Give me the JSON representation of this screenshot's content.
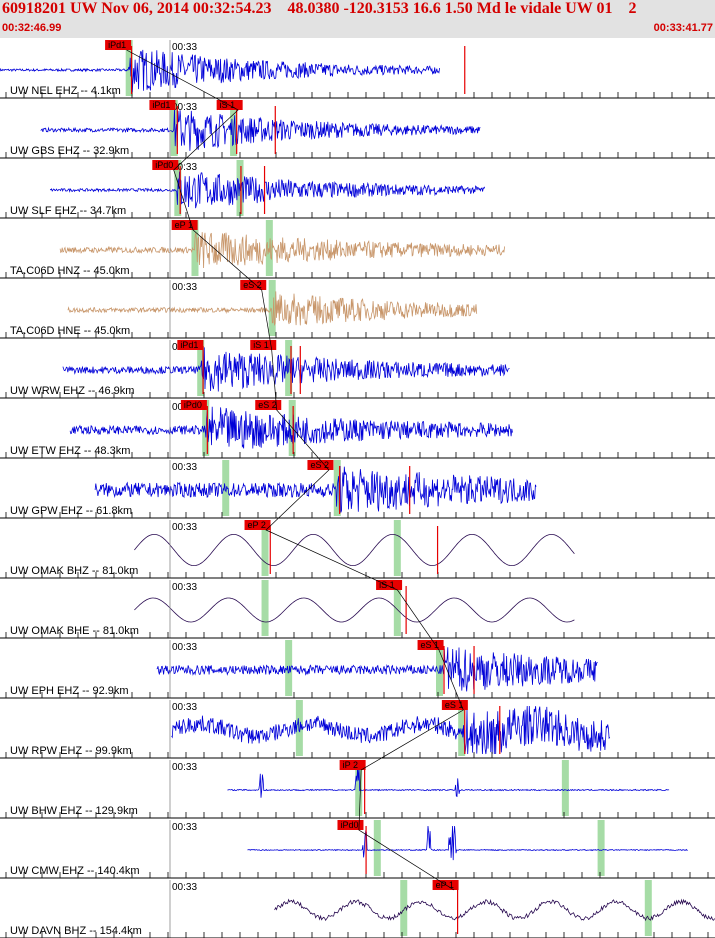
{
  "header": {
    "title": "60918201 UW Nov 06, 2014 00:32:54.23    48.0380 -120.3153 16.6 1.50 Md le vidale UW 01    2",
    "start_time": "00:32:46.99",
    "end_time": "00:33:41.77"
  },
  "minute_label": "00:33",
  "colors": {
    "blue": "#0000d8",
    "tan": "#c8966a",
    "dark": "#2a0c52",
    "pick": "#e60000",
    "green": "#a6dca6",
    "header_bg": "#e2e2e2"
  },
  "traces": [
    {
      "label": "UW NEL EHZ -- 4.1km",
      "color": "blue",
      "style": "quake",
      "start": 0.0,
      "end": 0.615,
      "onset": 0.18,
      "amp": 0.95,
      "decay": 0.2,
      "base": 0.05,
      "green": [
        0.18
      ],
      "picks": [
        {
          "text": "iPd1",
          "x": 0.147
        }
      ],
      "marks": [
        0.184,
        0.65
      ]
    },
    {
      "label": "UW GBS EHZ -- 32.9km",
      "color": "blue",
      "style": "quake",
      "start": 0.057,
      "end": 0.672,
      "onset": 0.243,
      "amp": 0.9,
      "decay": 0.18,
      "base": 0.08,
      "green": [
        0.243,
        0.326
      ],
      "picks": [
        {
          "text": "iPd1",
          "x": 0.209
        },
        {
          "text": "iS 1",
          "x": 0.303
        }
      ],
      "marks": [
        0.248,
        0.331,
        0.385
      ]
    },
    {
      "label": "UW SLF EHZ -- 34.7km",
      "color": "blue",
      "style": "quake",
      "start": 0.07,
      "end": 0.678,
      "onset": 0.248,
      "amp": 0.85,
      "decay": 0.2,
      "base": 0.06,
      "green": [
        0.248,
        0.335
      ],
      "picks": [
        {
          "text": "iPd0",
          "x": 0.213
        }
      ],
      "marks": [
        0.252,
        0.337,
        0.37
      ]
    },
    {
      "label": "TA.C06D HNZ -- 45.0km",
      "color": "tan",
      "style": "quake",
      "start": 0.084,
      "end": 0.706,
      "onset": 0.272,
      "amp": 0.75,
      "decay": 0.22,
      "base": 0.12,
      "green": [
        0.272,
        0.376
      ],
      "picks": [
        {
          "text": "eP 1",
          "x": 0.24
        }
      ],
      "marks": []
    },
    {
      "label": "TA.C06D HNE -- 45.0km",
      "color": "tan",
      "style": "quake",
      "start": 0.095,
      "end": 0.667,
      "onset": 0.38,
      "amp": 0.7,
      "decay": 0.2,
      "base": 0.1,
      "green": [
        0.38
      ],
      "picks": [
        {
          "text": "eS 2",
          "x": 0.336
        }
      ],
      "marks": []
    },
    {
      "label": "UW WRW EHZ -- 46.9km",
      "color": "blue",
      "style": "quake",
      "start": 0.088,
      "end": 0.713,
      "onset": 0.28,
      "amp": 0.85,
      "decay": 0.2,
      "base": 0.15,
      "green": [
        0.28,
        0.403
      ],
      "picks": [
        {
          "text": "iPd1",
          "x": 0.248
        },
        {
          "text": "iS 1",
          "x": 0.35
        }
      ],
      "marks": [
        0.284,
        0.407,
        0.42
      ]
    },
    {
      "label": "UW ETW EHZ -- 48.3km",
      "color": "blue",
      "style": "quake",
      "start": 0.098,
      "end": 0.717,
      "onset": 0.287,
      "amp": 0.85,
      "decay": 0.2,
      "base": 0.18,
      "green": [
        0.287,
        0.408
      ],
      "picks": [
        {
          "text": "iPd0",
          "x": 0.253
        },
        {
          "text": "eS 2",
          "x": 0.357
        }
      ],
      "marks": [
        0.29,
        0.41
      ]
    },
    {
      "label": "UW GPW EHZ -- 61.8km",
      "color": "blue",
      "style": "quake",
      "start": 0.133,
      "end": 0.75,
      "onset": 0.47,
      "amp": 0.8,
      "decay": 0.2,
      "base": 0.3,
      "green": [
        0.315,
        0.471
      ],
      "picks": [
        {
          "text": "eS 2",
          "x": 0.43
        }
      ],
      "marks": [
        0.475,
        0.573
      ]
    },
    {
      "label": "UW OMAK BHZ -- 81.0km",
      "color": "dark",
      "style": "wave",
      "start": 0.188,
      "end": 0.804,
      "freq": 9.0,
      "amp": 0.65,
      "green": [
        0.37,
        0.555
      ],
      "picks": [
        {
          "text": "eP 2",
          "x": 0.342
        }
      ],
      "marks": [
        0.378,
        0.612
      ]
    },
    {
      "label": "UW OMAK BHE -- 81.0km",
      "color": "dark",
      "style": "wave",
      "start": 0.188,
      "end": 0.804,
      "freq": 9.5,
      "amp": 0.5,
      "green": [
        0.37,
        0.555
      ],
      "picks": [
        {
          "text": "iS 1",
          "x": 0.526
        }
      ],
      "marks": [
        0.568
      ]
    },
    {
      "label": "UW EPH EHZ -- 92.9km",
      "color": "blue",
      "style": "quake",
      "start": 0.219,
      "end": 0.836,
      "onset": 0.621,
      "amp": 0.85,
      "decay": 0.2,
      "base": 0.2,
      "green": [
        0.403,
        0.614
      ],
      "picks": [
        {
          "text": "eS 1",
          "x": 0.584
        }
      ],
      "marks": [
        0.621,
        0.663
      ]
    },
    {
      "label": "UW RPW EHZ -- 99.9km",
      "color": "blue",
      "style": "mixed",
      "start": 0.24,
      "end": 0.853,
      "onset": 0.65,
      "amp": 0.8,
      "decay": 0.2,
      "base": 0.35,
      "green": [
        0.418,
        0.645
      ],
      "picks": [
        {
          "text": "eS 1",
          "x": 0.618
        }
      ],
      "marks": [
        0.65,
        0.699
      ]
    },
    {
      "label": "UW BHW EHZ -- 129.9km",
      "color": "blue",
      "style": "spiky",
      "start": 0.318,
      "end": 0.936,
      "base": 0.05,
      "green": [
        0.501,
        0.79
      ],
      "picks": [
        {
          "text": "iP 2",
          "x": 0.475
        }
      ],
      "marks": [
        0.51
      ],
      "spikes": [
        0.365,
        0.5,
        0.64
      ]
    },
    {
      "label": "UW CMW EHZ -- 140.4km",
      "color": "blue",
      "style": "spiky",
      "start": 0.346,
      "end": 0.962,
      "base": 0.04,
      "green": [
        0.527,
        0.84
      ],
      "picks": [
        {
          "text": "iPd0",
          "x": 0.472
        }
      ],
      "marks": [
        0.512
      ],
      "spikes": [
        0.51,
        0.6,
        0.63,
        0.635
      ]
    },
    {
      "label": "UW DAVN BHZ -- 154.4km",
      "color": "dark",
      "style": "wave",
      "start": 0.384,
      "end": 1.0,
      "freq": 11,
      "amp": 0.35,
      "noise": 0.18,
      "green": [
        0.564,
        0.906
      ],
      "picks": [
        {
          "text": "eP 1",
          "x": 0.605
        }
      ],
      "marks": [
        0.64
      ]
    }
  ]
}
